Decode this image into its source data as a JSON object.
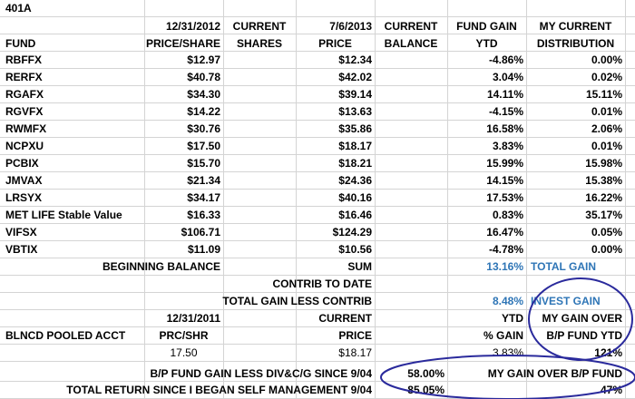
{
  "sheet_title": "401A",
  "header": {
    "date1": "12/31/2012",
    "current1": "CURRENT",
    "date2": "7/6/2013",
    "current2": "CURRENT",
    "fund_gain": "FUND GAIN",
    "my_current": "MY CURRENT",
    "fund": "FUND",
    "price_share": "PRICE/SHARE",
    "shares": "SHARES",
    "price": "PRICE",
    "balance": "BALANCE",
    "ytd": "YTD",
    "distribution": "DISTRIBUTION"
  },
  "funds": [
    {
      "fund": "RBFFX",
      "price_share": "$12.97",
      "current_price": "$12.34",
      "gain_ytd": "-4.86%",
      "distribution": "0.00%"
    },
    {
      "fund": "RERFX",
      "price_share": "$40.78",
      "current_price": "$42.02",
      "gain_ytd": "3.04%",
      "distribution": "0.02%"
    },
    {
      "fund": "RGAFX",
      "price_share": "$34.30",
      "current_price": "$39.14",
      "gain_ytd": "14.11%",
      "distribution": "15.11%"
    },
    {
      "fund": "RGVFX",
      "price_share": "$14.22",
      "current_price": "$13.63",
      "gain_ytd": "-4.15%",
      "distribution": "0.01%"
    },
    {
      "fund": "RWMFX",
      "price_share": "$30.76",
      "current_price": "$35.86",
      "gain_ytd": "16.58%",
      "distribution": "2.06%"
    },
    {
      "fund": "NCPXU",
      "price_share": "$17.50",
      "current_price": "$18.17",
      "gain_ytd": "3.83%",
      "distribution": "0.01%"
    },
    {
      "fund": "PCBIX",
      "price_share": "$15.70",
      "current_price": "$18.21",
      "gain_ytd": "15.99%",
      "distribution": "15.98%"
    },
    {
      "fund": "JMVAX",
      "price_share": "$21.34",
      "current_price": "$24.36",
      "gain_ytd": "14.15%",
      "distribution": "15.38%"
    },
    {
      "fund": "LRSYX",
      "price_share": "$34.17",
      "current_price": "$40.16",
      "gain_ytd": "17.53%",
      "distribution": "16.22%"
    },
    {
      "fund": "MET LIFE Stable Value",
      "price_share": "$16.33",
      "current_price": "$16.46",
      "gain_ytd": "0.83%",
      "distribution": "35.17%"
    },
    {
      "fund": "VIFSX",
      "price_share": "$106.71",
      "current_price": "$124.29",
      "gain_ytd": "16.47%",
      "distribution": "0.05%"
    },
    {
      "fund": "VBTIX",
      "price_share": "$11.09",
      "current_price": "$10.56",
      "gain_ytd": "-4.78%",
      "distribution": "0.00%"
    }
  ],
  "summary": {
    "beginning_balance": "BEGINNING BALANCE",
    "sum": "SUM",
    "total_gain_pct": "13.16%",
    "total_gain_label": "TOTAL GAIN",
    "contrib_to_date": "CONTRIB TO DATE",
    "total_gain_less_contrib": "TOTAL GAIN LESS CONTRIB",
    "invest_gain_pct": "8.48%",
    "invest_gain_label": "INVEST GAIN"
  },
  "pooled": {
    "date": "12/31/2011",
    "current": "CURRENT",
    "ytd": "YTD",
    "my_gain_over": "MY GAIN OVER",
    "account": "BLNCD POOLED ACCT",
    "prc_shr": "PRC/SHR",
    "price": "PRICE",
    "pct_gain": "% GAIN",
    "bp_fund_ytd": "B/P FUND YTD",
    "prc_value": "17.50",
    "price_value": "$18.17",
    "gain_value": "3.83%",
    "over_value": "121%"
  },
  "footer": {
    "bp_fund_gain_label": "B/P FUND GAIN LESS DIV&C/G SINCE 9/04",
    "bp_fund_gain_value": "58.00%",
    "my_gain_over_bp": "MY GAIN OVER  B/P FUND",
    "total_return_label": "TOTAL RETURN SINCE I BEGAN SELF MANAGEMENT 9/04",
    "total_return_value": "85.05%",
    "over_bp_value": "47%"
  },
  "colors": {
    "blue_text": "#2e75b6",
    "circle_stroke": "#2a2a9c",
    "gridline": "#d4d4d4"
  }
}
